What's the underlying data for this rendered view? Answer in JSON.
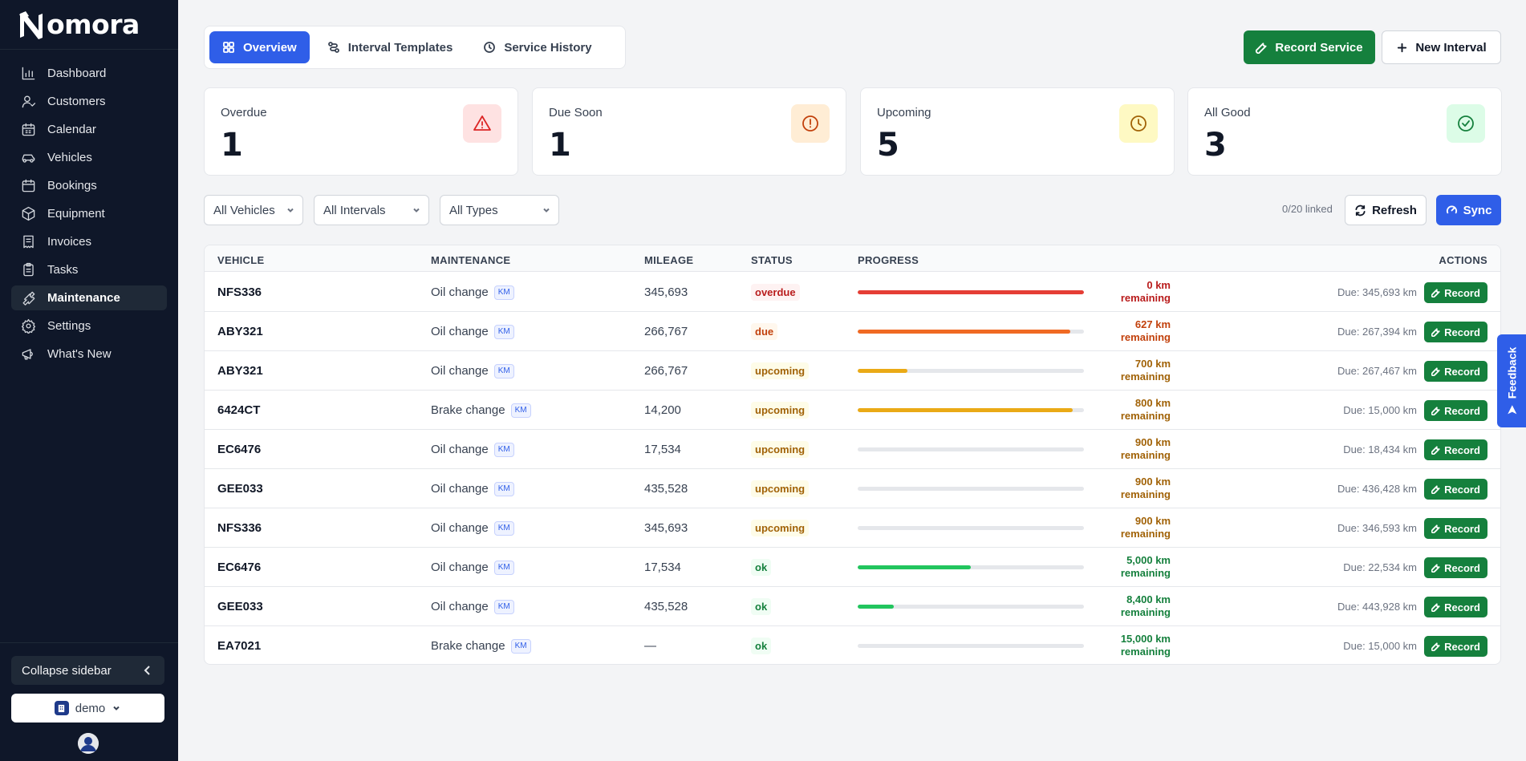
{
  "brand": {
    "name": "omora",
    "accent": "#2f5ee8",
    "success": "#15803d"
  },
  "sidebar": {
    "items": [
      {
        "label": "Dashboard",
        "icon": "bar-chart-icon",
        "active": false
      },
      {
        "label": "Customers",
        "icon": "user-icon",
        "active": false
      },
      {
        "label": "Calendar",
        "icon": "calendar-icon",
        "active": false
      },
      {
        "label": "Vehicles",
        "icon": "car-icon",
        "active": false
      },
      {
        "label": "Bookings",
        "icon": "calendar-icon",
        "active": false
      },
      {
        "label": "Equipment",
        "icon": "box-icon",
        "active": false
      },
      {
        "label": "Invoices",
        "icon": "receipt-icon",
        "active": false
      },
      {
        "label": "Tasks",
        "icon": "clipboard-icon",
        "active": false
      },
      {
        "label": "Maintenance",
        "icon": "wrench-icon",
        "active": true
      },
      {
        "label": "Settings",
        "icon": "gear-icon",
        "active": false
      },
      {
        "label": "What's New",
        "icon": "megaphone-icon",
        "active": false
      }
    ],
    "collapse_label": "Collapse sidebar",
    "org_label": "demo"
  },
  "tabs": [
    {
      "label": "Overview",
      "icon": "grid-icon",
      "active": true
    },
    {
      "label": "Interval Templates",
      "icon": "route-icon",
      "active": false
    },
    {
      "label": "Service History",
      "icon": "history-icon",
      "active": false
    }
  ],
  "actions": {
    "record_service": "Record Service",
    "new_interval": "New Interval"
  },
  "cards": [
    {
      "label": "Overdue",
      "value": "1",
      "icon": "alert-triangle-icon",
      "icon_color": "#dc2626",
      "icon_bg": "#fee2e2"
    },
    {
      "label": "Due Soon",
      "value": "1",
      "icon": "alert-circle-icon",
      "icon_color": "#c2410c",
      "icon_bg": "#ffedd5"
    },
    {
      "label": "Upcoming",
      "value": "5",
      "icon": "clock-icon",
      "icon_color": "#a16207",
      "icon_bg": "#fef9c3"
    },
    {
      "label": "All Good",
      "value": "3",
      "icon": "check-circle-icon",
      "icon_color": "#15803d",
      "icon_bg": "#dcfce7"
    }
  ],
  "filters": {
    "vehicles": "All Vehicles",
    "intervals": "All Intervals",
    "types": "All Types"
  },
  "linked_text": "0/20 linked",
  "refresh_label": "Refresh",
  "sync_label": "Sync",
  "table": {
    "columns": {
      "vehicle": "VEHICLE",
      "maintenance": "MAINTENANCE",
      "mileage": "MILEAGE",
      "status": "STATUS",
      "progress": "PROGRESS",
      "actions": "ACTIONS"
    },
    "record_label": "Record",
    "rows": [
      {
        "vehicle": "NFS336",
        "maintenance": "Oil change",
        "unit": "KM",
        "mileage": "345,693",
        "status": "overdue",
        "progress": 1.0,
        "remaining_km": "0 km",
        "remaining_word": "remaining",
        "due": "Due: 345,693 km"
      },
      {
        "vehicle": "ABY321",
        "maintenance": "Oil change",
        "unit": "KM",
        "mileage": "266,767",
        "status": "due",
        "progress": 0.94,
        "remaining_km": "627 km",
        "remaining_word": "remaining",
        "due": "Due: 267,394 km"
      },
      {
        "vehicle": "ABY321",
        "maintenance": "Oil change",
        "unit": "KM",
        "mileage": "266,767",
        "status": "upcoming",
        "progress": 0.22,
        "remaining_km": "700 km",
        "remaining_word": "remaining",
        "due": "Due: 267,467 km"
      },
      {
        "vehicle": "6424CT",
        "maintenance": "Brake change",
        "unit": "KM",
        "mileage": "14,200",
        "status": "upcoming",
        "progress": 0.95,
        "remaining_km": "800 km",
        "remaining_word": "remaining",
        "due": "Due: 15,000 km"
      },
      {
        "vehicle": "EC6476",
        "maintenance": "Oil change",
        "unit": "KM",
        "mileage": "17,534",
        "status": "upcoming",
        "progress": 0,
        "remaining_km": "900 km",
        "remaining_word": "remaining",
        "due": "Due: 18,434 km"
      },
      {
        "vehicle": "GEE033",
        "maintenance": "Oil change",
        "unit": "KM",
        "mileage": "435,528",
        "status": "upcoming",
        "progress": 0,
        "remaining_km": "900 km",
        "remaining_word": "remaining",
        "due": "Due: 436,428 km"
      },
      {
        "vehicle": "NFS336",
        "maintenance": "Oil change",
        "unit": "KM",
        "mileage": "345,693",
        "status": "upcoming",
        "progress": 0,
        "remaining_km": "900 km",
        "remaining_word": "remaining",
        "due": "Due: 346,593 km"
      },
      {
        "vehicle": "EC6476",
        "maintenance": "Oil change",
        "unit": "KM",
        "mileage": "17,534",
        "status": "ok",
        "progress": 0.5,
        "remaining_km": "5,000 km",
        "remaining_word": "remaining",
        "due": "Due: 22,534 km"
      },
      {
        "vehicle": "GEE033",
        "maintenance": "Oil change",
        "unit": "KM",
        "mileage": "435,528",
        "status": "ok",
        "progress": 0.16,
        "remaining_km": "8,400 km",
        "remaining_word": "remaining",
        "due": "Due: 443,928 km"
      },
      {
        "vehicle": "EA7021",
        "maintenance": "Brake change",
        "unit": "KM",
        "mileage": "—",
        "status": "ok",
        "progress": 0,
        "remaining_km": "15,000 km",
        "remaining_word": "remaining",
        "due": "Due: 15,000 km"
      }
    ]
  },
  "status_colors": {
    "overdue": {
      "text": "#b91c1c",
      "bg": "#fef2f2",
      "bar": "#e53e35"
    },
    "due": {
      "text": "#c2410c",
      "bg": "#fff7ed",
      "bar": "#f06a23"
    },
    "upcoming": {
      "text": "#a16207",
      "bg": "#fefce8",
      "bar": "#eaaa16"
    },
    "ok": {
      "text": "#15803d",
      "bg": "#f0fdf4",
      "bar": "#22c55e"
    }
  },
  "feedback_label": "Feedback"
}
